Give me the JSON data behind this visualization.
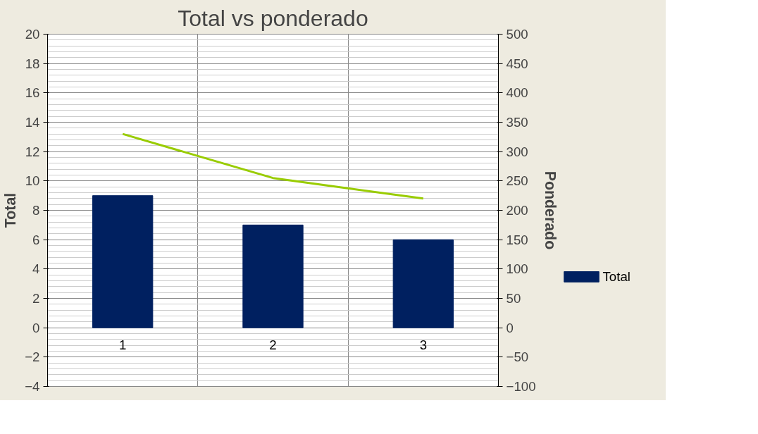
{
  "chart_data": {
    "type": "bar",
    "title": "Total vs ponderado",
    "ylabel": "Total",
    "y2label": "Ponderado",
    "categories": [
      "1",
      "2",
      "3"
    ],
    "series": [
      {
        "name": "Total",
        "color": "#002060",
        "values": [
          9,
          7,
          6
        ]
      },
      {
        "type": "line",
        "axis": "y2",
        "color": "#99cc00",
        "values": [
          330,
          255,
          220
        ]
      }
    ],
    "ylim": [
      -4,
      20
    ],
    "yticks": [
      -4,
      -2,
      0,
      2,
      4,
      6,
      8,
      10,
      12,
      14,
      16,
      18,
      20
    ],
    "y2lim": [
      -100,
      500
    ],
    "y2ticks": [
      -100,
      -50,
      0,
      50,
      100,
      150,
      200,
      250,
      300,
      350,
      400,
      450,
      500
    ],
    "grid": true,
    "legend": "right"
  }
}
